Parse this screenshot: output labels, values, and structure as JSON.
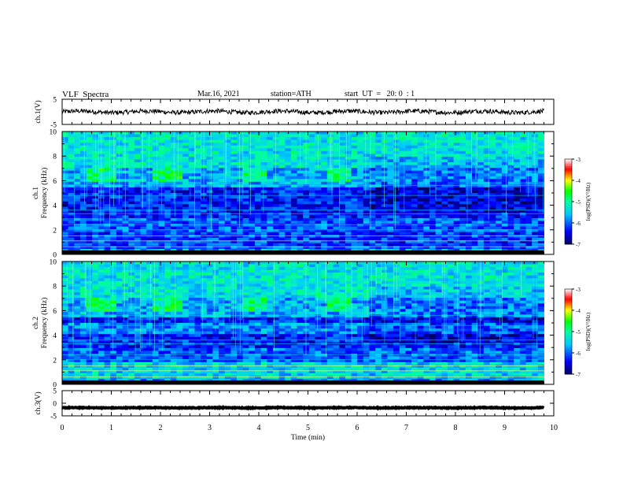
{
  "header": {
    "title": "VLF  Spectra",
    "date": "Mar.16, 2021",
    "station": "station=ATH",
    "start": "start  UT  =   20: 0  : 1"
  },
  "chart_data": [
    {
      "type": "line",
      "panel": "ch1-waveform",
      "ylabel": "ch.1(V)",
      "ylim": [
        -5,
        5
      ],
      "yticks": [
        "5",
        "-5"
      ],
      "xlim": [
        0,
        10
      ],
      "x_end": 9.8,
      "baseline": 0,
      "amplitude": 0.9
    },
    {
      "type": "heatmap",
      "panel": "ch1-spectrogram",
      "ylabel": "ch.1\nFrequency  (kHz)",
      "ylim": [
        0,
        10
      ],
      "yticks": [
        "0",
        "2",
        "4",
        "6",
        "8",
        "10"
      ],
      "xlim": [
        0,
        10
      ],
      "x_end": 9.8,
      "colorbar": {
        "label": "log(PSD)(V²/Hz)",
        "range": [
          -7,
          -3
        ],
        "ticks": [
          "-3",
          "-4",
          "-5",
          "-6",
          "-7"
        ]
      }
    },
    {
      "type": "heatmap",
      "panel": "ch2-spectrogram",
      "ylabel": "ch.2\nFrequency  (kHz)",
      "ylim": [
        0,
        10
      ],
      "yticks": [
        "0",
        "2",
        "4",
        "6",
        "8",
        "10"
      ],
      "xlim": [
        0,
        10
      ],
      "x_end": 9.8,
      "colorbar": {
        "label": "log(PSD)(V²/Hz)",
        "range": [
          -7,
          -3
        ],
        "ticks": [
          "-3",
          "-4",
          "-5",
          "-6",
          "-7"
        ]
      }
    },
    {
      "type": "line",
      "panel": "ch3-waveform",
      "ylabel": "ch.3(V)",
      "ylim": [
        -5,
        5
      ],
      "yticks": [
        "5",
        "0",
        "-5"
      ],
      "xlim": [
        0,
        10
      ],
      "x_end": 9.8,
      "baseline": -1.8,
      "amplitude": 0.15,
      "xlabel": "Time  (min)",
      "xticks": [
        "0",
        "1",
        "2",
        "3",
        "4",
        "5",
        "6",
        "7",
        "8",
        "9",
        "10"
      ]
    }
  ]
}
